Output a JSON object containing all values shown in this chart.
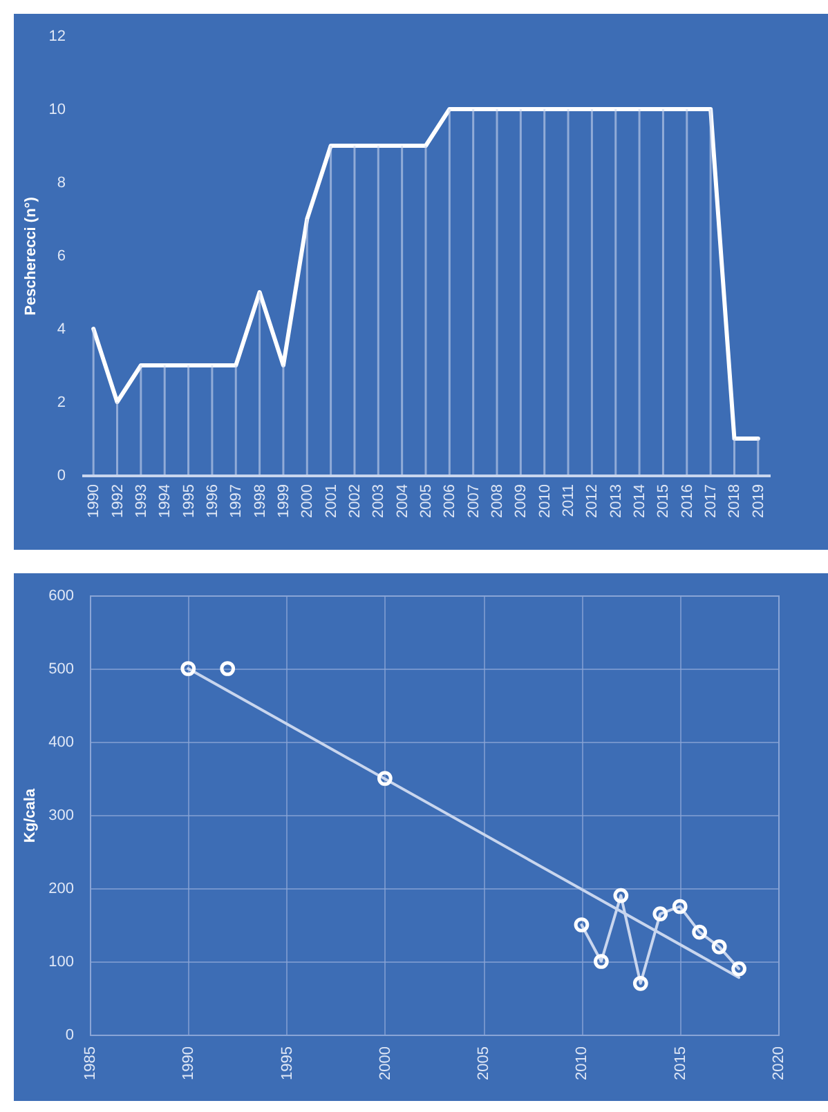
{
  "chart_data": [
    {
      "type": "line",
      "ylabel": "Pescherecci (n°)",
      "categories": [
        "1990",
        "1992",
        "1993",
        "1994",
        "1995",
        "1996",
        "1997",
        "1998",
        "1999",
        "2000",
        "2001",
        "2002",
        "2003",
        "2004",
        "2005",
        "2006",
        "2007",
        "2008",
        "2009",
        "2010",
        "2011",
        "2012",
        "2013",
        "2014",
        "2015",
        "2016",
        "2017",
        "2018",
        "2019"
      ],
      "series": [
        {
          "color": "#ffffff",
          "values": [
            4,
            2,
            3,
            3,
            3,
            3,
            3,
            5,
            3,
            7,
            9,
            9,
            9,
            9,
            9,
            10,
            10,
            10,
            10,
            10,
            10,
            10,
            10,
            10,
            10,
            10,
            10,
            1,
            1
          ]
        },
        {
          "type": "bar",
          "color": "#c9d6ee",
          "values": [
            4,
            2,
            3,
            3,
            3,
            3,
            3,
            5,
            3,
            7,
            9,
            9,
            9,
            9,
            9,
            10,
            10,
            10,
            10,
            10,
            10,
            10,
            10,
            10,
            10,
            10,
            10,
            1,
            1
          ]
        }
      ],
      "ylim": [
        0,
        12
      ],
      "yticks": [
        0,
        2,
        4,
        6,
        8,
        10,
        12
      ],
      "grid": false
    },
    {
      "type": "scatter",
      "ylabel": "Kg/cala",
      "xlim": [
        1985,
        2020
      ],
      "xticks": [
        1985,
        1990,
        1995,
        2000,
        2005,
        2010,
        2015,
        2020
      ],
      "ylim": [
        0,
        600
      ],
      "yticks": [
        0,
        100,
        200,
        300,
        400,
        500,
        600
      ],
      "grid": true,
      "series": [
        {
          "type": "line",
          "color": "#c9d6ee",
          "marker": "none",
          "x": [
            1990,
            2018
          ],
          "values": [
            500,
            78
          ]
        },
        {
          "type": "line",
          "color": "#c9d6ee",
          "marker": "none",
          "x": [
            2010,
            2011,
            2012,
            2013,
            2014,
            2015,
            2016,
            2017,
            2018
          ],
          "values": [
            150,
            100,
            190,
            70,
            165,
            175,
            140,
            120,
            90
          ]
        },
        {
          "color": "#ffffff",
          "marker": "circle",
          "x": [
            1990,
            1992,
            2000,
            2010,
            2011,
            2012,
            2013,
            2014,
            2015,
            2016,
            2017,
            2018
          ],
          "values": [
            500,
            500,
            350,
            150,
            100,
            190,
            70,
            165,
            175,
            140,
            120,
            90
          ]
        }
      ]
    }
  ]
}
